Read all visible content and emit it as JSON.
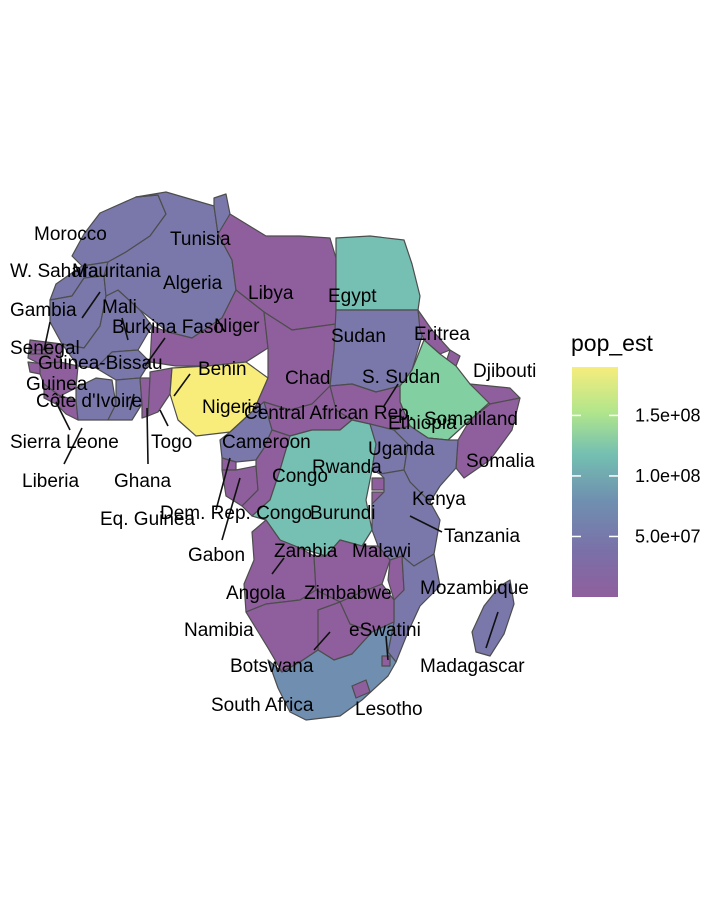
{
  "legend": {
    "title": "pop_est",
    "ticks": [
      {
        "value": 150000000,
        "label": "1.5e+08"
      },
      {
        "value": 100000000,
        "label": "1.0e+08"
      },
      {
        "value": 50000000,
        "label": "5.0e+07"
      }
    ],
    "range": [
      0,
      190000000
    ],
    "colors": [
      "#8f5f9d",
      "#6f80ad",
      "#72b2b3",
      "#7fd3a2",
      "#b6e58a",
      "#f6ed7c"
    ]
  },
  "map": {
    "country_fill_colors": {
      "low": "#8f5f9d",
      "lowmid": "#7a78aa",
      "mid": "#6f8eb0",
      "teal": "#76bfb3",
      "high": "#82cfa2",
      "max": "#f8ed7a"
    }
  },
  "labels": {
    "morocco": "Morocco",
    "w_sahara": "W. Sahara",
    "mauritania": "Mauritania",
    "gambia": "Gambia",
    "senegal": "Senegal",
    "mali": "Mali",
    "guinea_bissau": "Guinea-Bissau",
    "guinea": "Guinea",
    "cote_divoire": "Côte d'Ivoire",
    "sierra_leone": "Sierra Leone",
    "liberia": "Liberia",
    "ghana": "Ghana",
    "togo": "Togo",
    "burkina_faso": "Burkina Faso",
    "benin": "Benin",
    "niger": "Niger",
    "nigeria": "Nigeria",
    "tunisia": "Tunisia",
    "algeria": "Algeria",
    "libya": "Libya",
    "egypt": "Egypt",
    "sudan": "Sudan",
    "eritrea": "Eritrea",
    "djibouti": "Djibouti",
    "chad": "Chad",
    "s_sudan": "S. Sudan",
    "central_african_rep": "Central African Rep.",
    "ethiopia": "Ethiopia",
    "somaliland": "Somaliland",
    "somalia": "Somalia",
    "cameroon": "Cameroon",
    "eq_guinea": "Eq. Guinea",
    "gabon": "Gabon",
    "congo": "Congo",
    "dem_rep_congo": "Dem. Rep. Congo",
    "uganda": "Uganda",
    "rwanda": "Rwanda",
    "burundi": "Burundi",
    "kenya": "Kenya",
    "tanzania": "Tanzania",
    "angola": "Angola",
    "zambia": "Zambia",
    "malawi": "Malawi",
    "mozambique": "Mozambique",
    "zimbabwe": "Zimbabwe",
    "namibia": "Namibia",
    "botswana": "Botswana",
    "eswatini": "eSwatini",
    "madagascar": "Madagascar",
    "south_africa": "South Africa",
    "lesotho": "Lesotho"
  }
}
